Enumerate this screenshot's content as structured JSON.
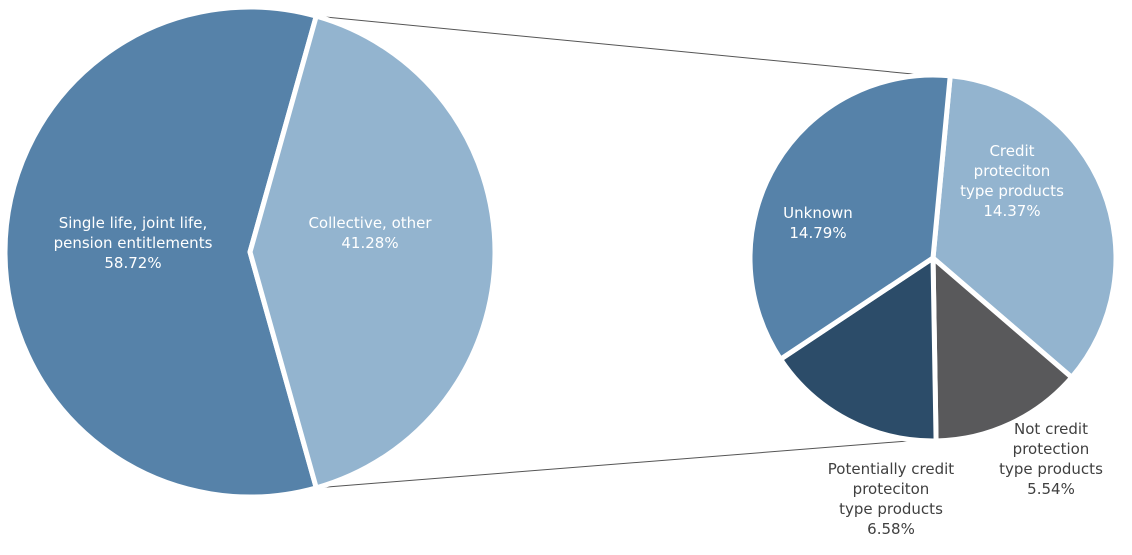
{
  "chart_data": {
    "type": "pie",
    "title": "",
    "subtype": "pie-of-pie",
    "colors": {
      "primary_blue": "#5682a9",
      "light_blue": "#93b4cf",
      "dark_navy": "#2c4c69",
      "dark_gray": "#59595b",
      "connector": "#555555"
    },
    "main_pie": {
      "slices": [
        {
          "label": "Single life, joint life, pension entitlements",
          "label_lines": [
            "Single life, joint life,",
            "pension entitlements"
          ],
          "value": 58.72,
          "value_text": "58.72%",
          "color": "#5682a9"
        },
        {
          "label": "Collective, other",
          "label_lines": [
            "Collective, other"
          ],
          "value": 41.28,
          "value_text": "41.28%",
          "color": "#93b4cf"
        }
      ]
    },
    "secondary_pie": {
      "breakdown_of": "Collective, other",
      "slices": [
        {
          "label": "Credit proteciton type products",
          "label_lines": [
            "Credit",
            "proteciton",
            "type products"
          ],
          "value": 14.37,
          "value_text": "14.37%",
          "color": "#93b4cf"
        },
        {
          "label": "Not credit protection type products",
          "label_lines": [
            "Not credit",
            "protection",
            "type products"
          ],
          "value": 5.54,
          "value_text": "5.54%",
          "color": "#59595b"
        },
        {
          "label": "Potentially credit proteciton type products",
          "label_lines": [
            "Potentially credit",
            "proteciton",
            "type products"
          ],
          "value": 6.58,
          "value_text": "6.58%",
          "color": "#2c4c69"
        },
        {
          "label": "Unknown",
          "label_lines": [
            "Unknown"
          ],
          "value": 14.79,
          "value_text": "14.79%",
          "color": "#5682a9"
        }
      ]
    }
  }
}
